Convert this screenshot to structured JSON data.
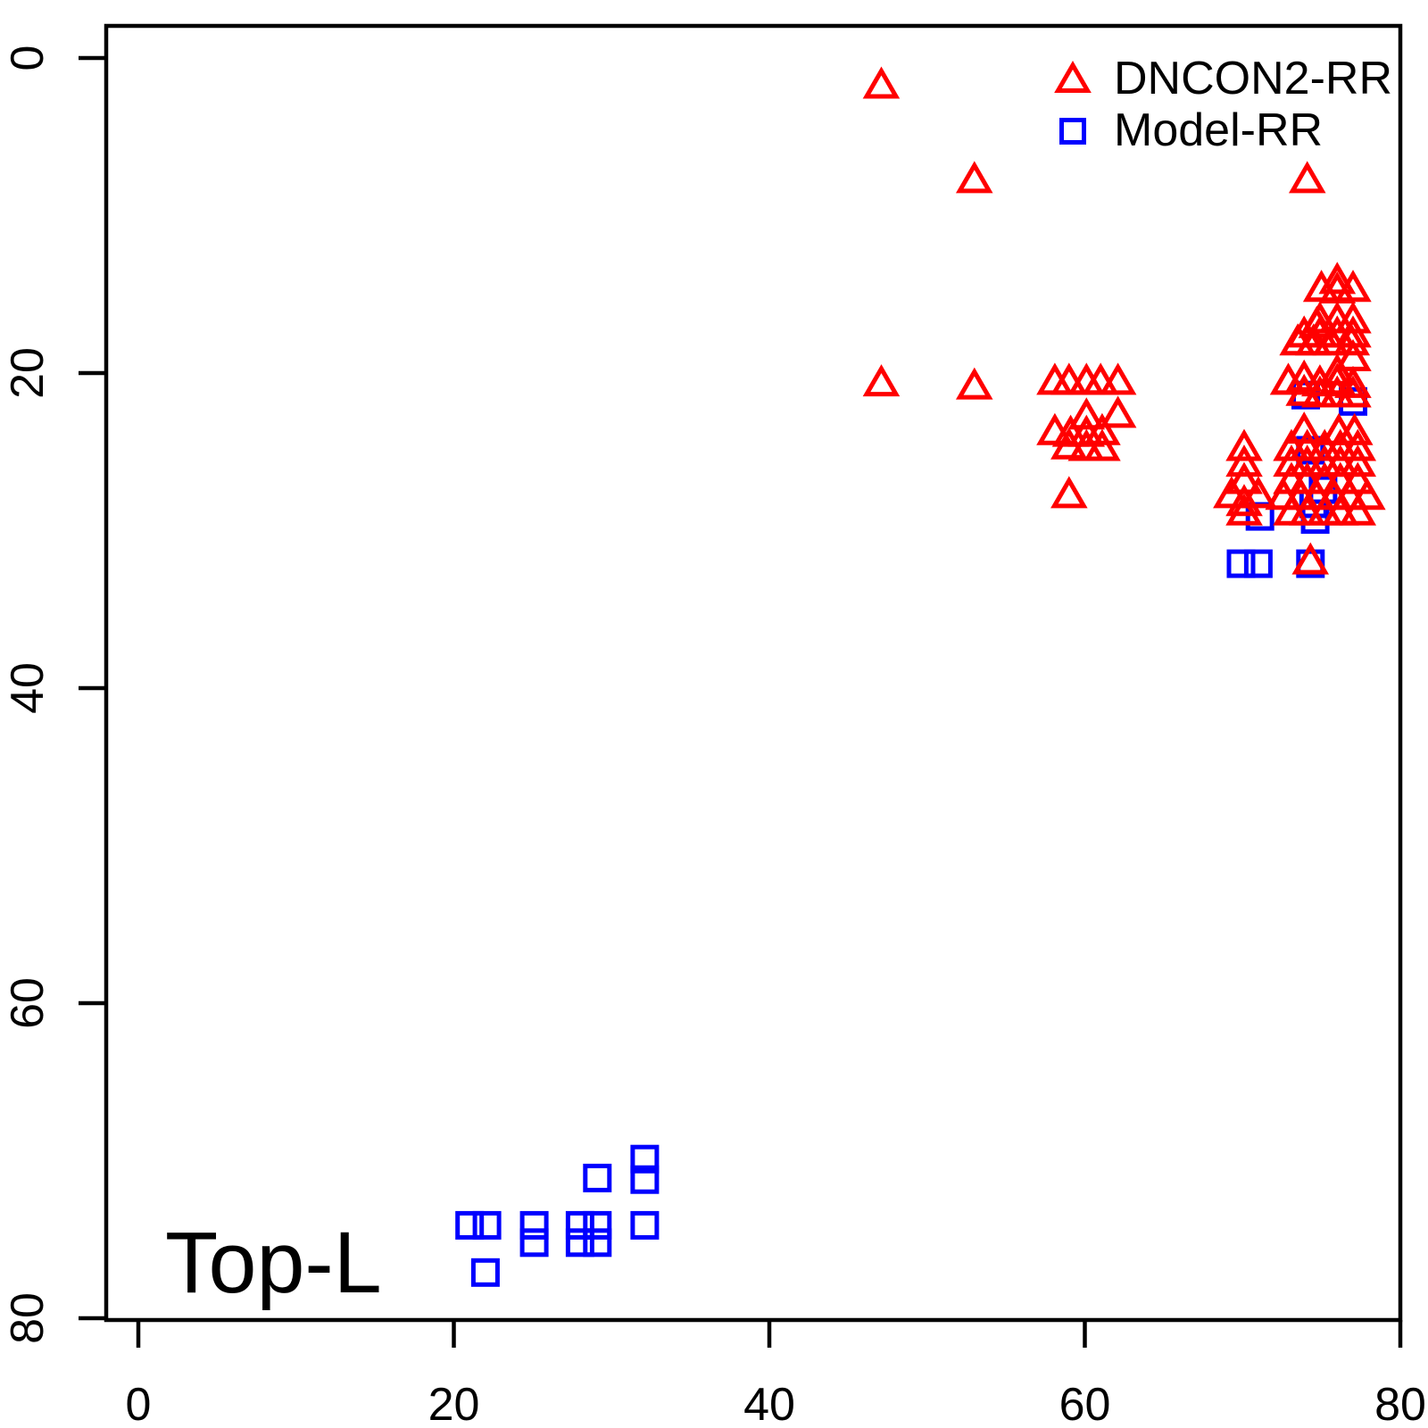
{
  "chart_data": {
    "type": "scatter",
    "title": "",
    "annotation": "Top-L",
    "xlabel": "",
    "ylabel": "",
    "x_ticks": [
      0,
      20,
      40,
      60,
      80
    ],
    "y_ticks": [
      0,
      20,
      40,
      60,
      80
    ],
    "xlim": [
      -2,
      80.2
    ],
    "ylim": [
      80.2,
      -2
    ],
    "y_axis_inverted": true,
    "grid": false,
    "legend_position": "top-right",
    "colors": {
      "dncon2": "#ff0000",
      "model": "#0000ff",
      "axis": "#000000"
    },
    "series": [
      {
        "name": "Model-RR",
        "marker": "square",
        "color": "#0000ff",
        "points": [
          [
            74.0,
            21.4
          ],
          [
            77.0,
            21.8
          ],
          [
            74.3,
            24.9
          ],
          [
            75.1,
            27.4
          ],
          [
            74.5,
            28.3
          ],
          [
            71.1,
            29.1
          ],
          [
            74.6,
            29.3
          ],
          [
            69.9,
            32.1
          ],
          [
            71.0,
            32.1
          ],
          [
            74.3,
            32.1
          ],
          [
            32.1,
            69.9
          ],
          [
            29.1,
            71.1
          ],
          [
            32.1,
            71.2
          ],
          [
            21.0,
            74.1
          ],
          [
            22.1,
            74.1
          ],
          [
            25.1,
            74.1
          ],
          [
            28.0,
            74.1
          ],
          [
            29.1,
            74.1
          ],
          [
            32.1,
            74.1
          ],
          [
            25.1,
            75.2
          ],
          [
            28.0,
            75.2
          ],
          [
            29.1,
            75.2
          ],
          [
            22.0,
            77.1
          ]
        ]
      },
      {
        "name": "DNCON2-RR",
        "marker": "triangle",
        "color": "#ff0000",
        "points": [
          [
            47.1,
            1.9
          ],
          [
            53.0,
            7.9
          ],
          [
            74.1,
            7.9
          ],
          [
            76.0,
            14.3
          ],
          [
            75.0,
            14.8
          ],
          [
            76.0,
            14.9
          ],
          [
            77.0,
            14.8
          ],
          [
            74.9,
            16.8
          ],
          [
            76.0,
            16.8
          ],
          [
            77.0,
            16.8
          ],
          [
            74.7,
            17.1
          ],
          [
            73.9,
            17.7
          ],
          [
            74.9,
            17.7
          ],
          [
            76.0,
            17.7
          ],
          [
            77.0,
            17.7
          ],
          [
            73.5,
            18.2
          ],
          [
            74.5,
            18.2
          ],
          [
            75.6,
            18.2
          ],
          [
            76.9,
            18.2
          ],
          [
            77.0,
            19.2
          ],
          [
            76.0,
            20.1
          ],
          [
            47.1,
            20.8
          ],
          [
            53.0,
            21.0
          ],
          [
            58.1,
            20.7
          ],
          [
            59.0,
            20.7
          ],
          [
            60.1,
            20.7
          ],
          [
            61.0,
            20.7
          ],
          [
            62.1,
            20.7
          ],
          [
            72.9,
            20.7
          ],
          [
            73.9,
            20.5
          ],
          [
            74.9,
            20.8
          ],
          [
            76.0,
            20.7
          ],
          [
            77.0,
            20.9
          ],
          [
            73.9,
            21.4
          ],
          [
            74.9,
            21.5
          ],
          [
            76.0,
            21.5
          ],
          [
            77.0,
            21.5
          ],
          [
            60.1,
            22.9
          ],
          [
            62.1,
            22.8
          ],
          [
            58.1,
            23.9
          ],
          [
            59.1,
            24.0
          ],
          [
            60.1,
            24.0
          ],
          [
            61.1,
            23.9
          ],
          [
            73.9,
            23.8
          ],
          [
            76.1,
            23.9
          ],
          [
            77.1,
            23.9
          ],
          [
            59.0,
            24.8
          ],
          [
            60.1,
            24.9
          ],
          [
            61.1,
            24.9
          ],
          [
            70.1,
            24.9
          ],
          [
            73.1,
            24.9
          ],
          [
            74.1,
            24.9
          ],
          [
            75.2,
            24.9
          ],
          [
            76.2,
            24.9
          ],
          [
            77.3,
            24.9
          ],
          [
            70.1,
            25.9
          ],
          [
            73.1,
            25.9
          ],
          [
            74.1,
            25.9
          ],
          [
            75.2,
            25.9
          ],
          [
            76.2,
            25.9
          ],
          [
            77.3,
            25.9
          ],
          [
            70.1,
            27.0
          ],
          [
            73.1,
            27.0
          ],
          [
            74.1,
            27.0
          ],
          [
            75.2,
            27.0
          ],
          [
            76.2,
            27.0
          ],
          [
            77.3,
            27.0
          ],
          [
            59.0,
            27.9
          ],
          [
            69.3,
            27.9
          ],
          [
            71.0,
            27.9
          ],
          [
            72.6,
            28.0
          ],
          [
            73.7,
            28.0
          ],
          [
            74.7,
            28.0
          ],
          [
            75.8,
            28.0
          ],
          [
            76.8,
            28.0
          ],
          [
            77.9,
            28.0
          ],
          [
            70.1,
            28.4
          ],
          [
            70.1,
            29.0
          ],
          [
            73.1,
            29.0
          ],
          [
            74.1,
            29.0
          ],
          [
            75.2,
            29.0
          ],
          [
            76.2,
            29.0
          ],
          [
            77.3,
            29.0
          ],
          [
            74.3,
            32.1
          ]
        ]
      }
    ]
  }
}
